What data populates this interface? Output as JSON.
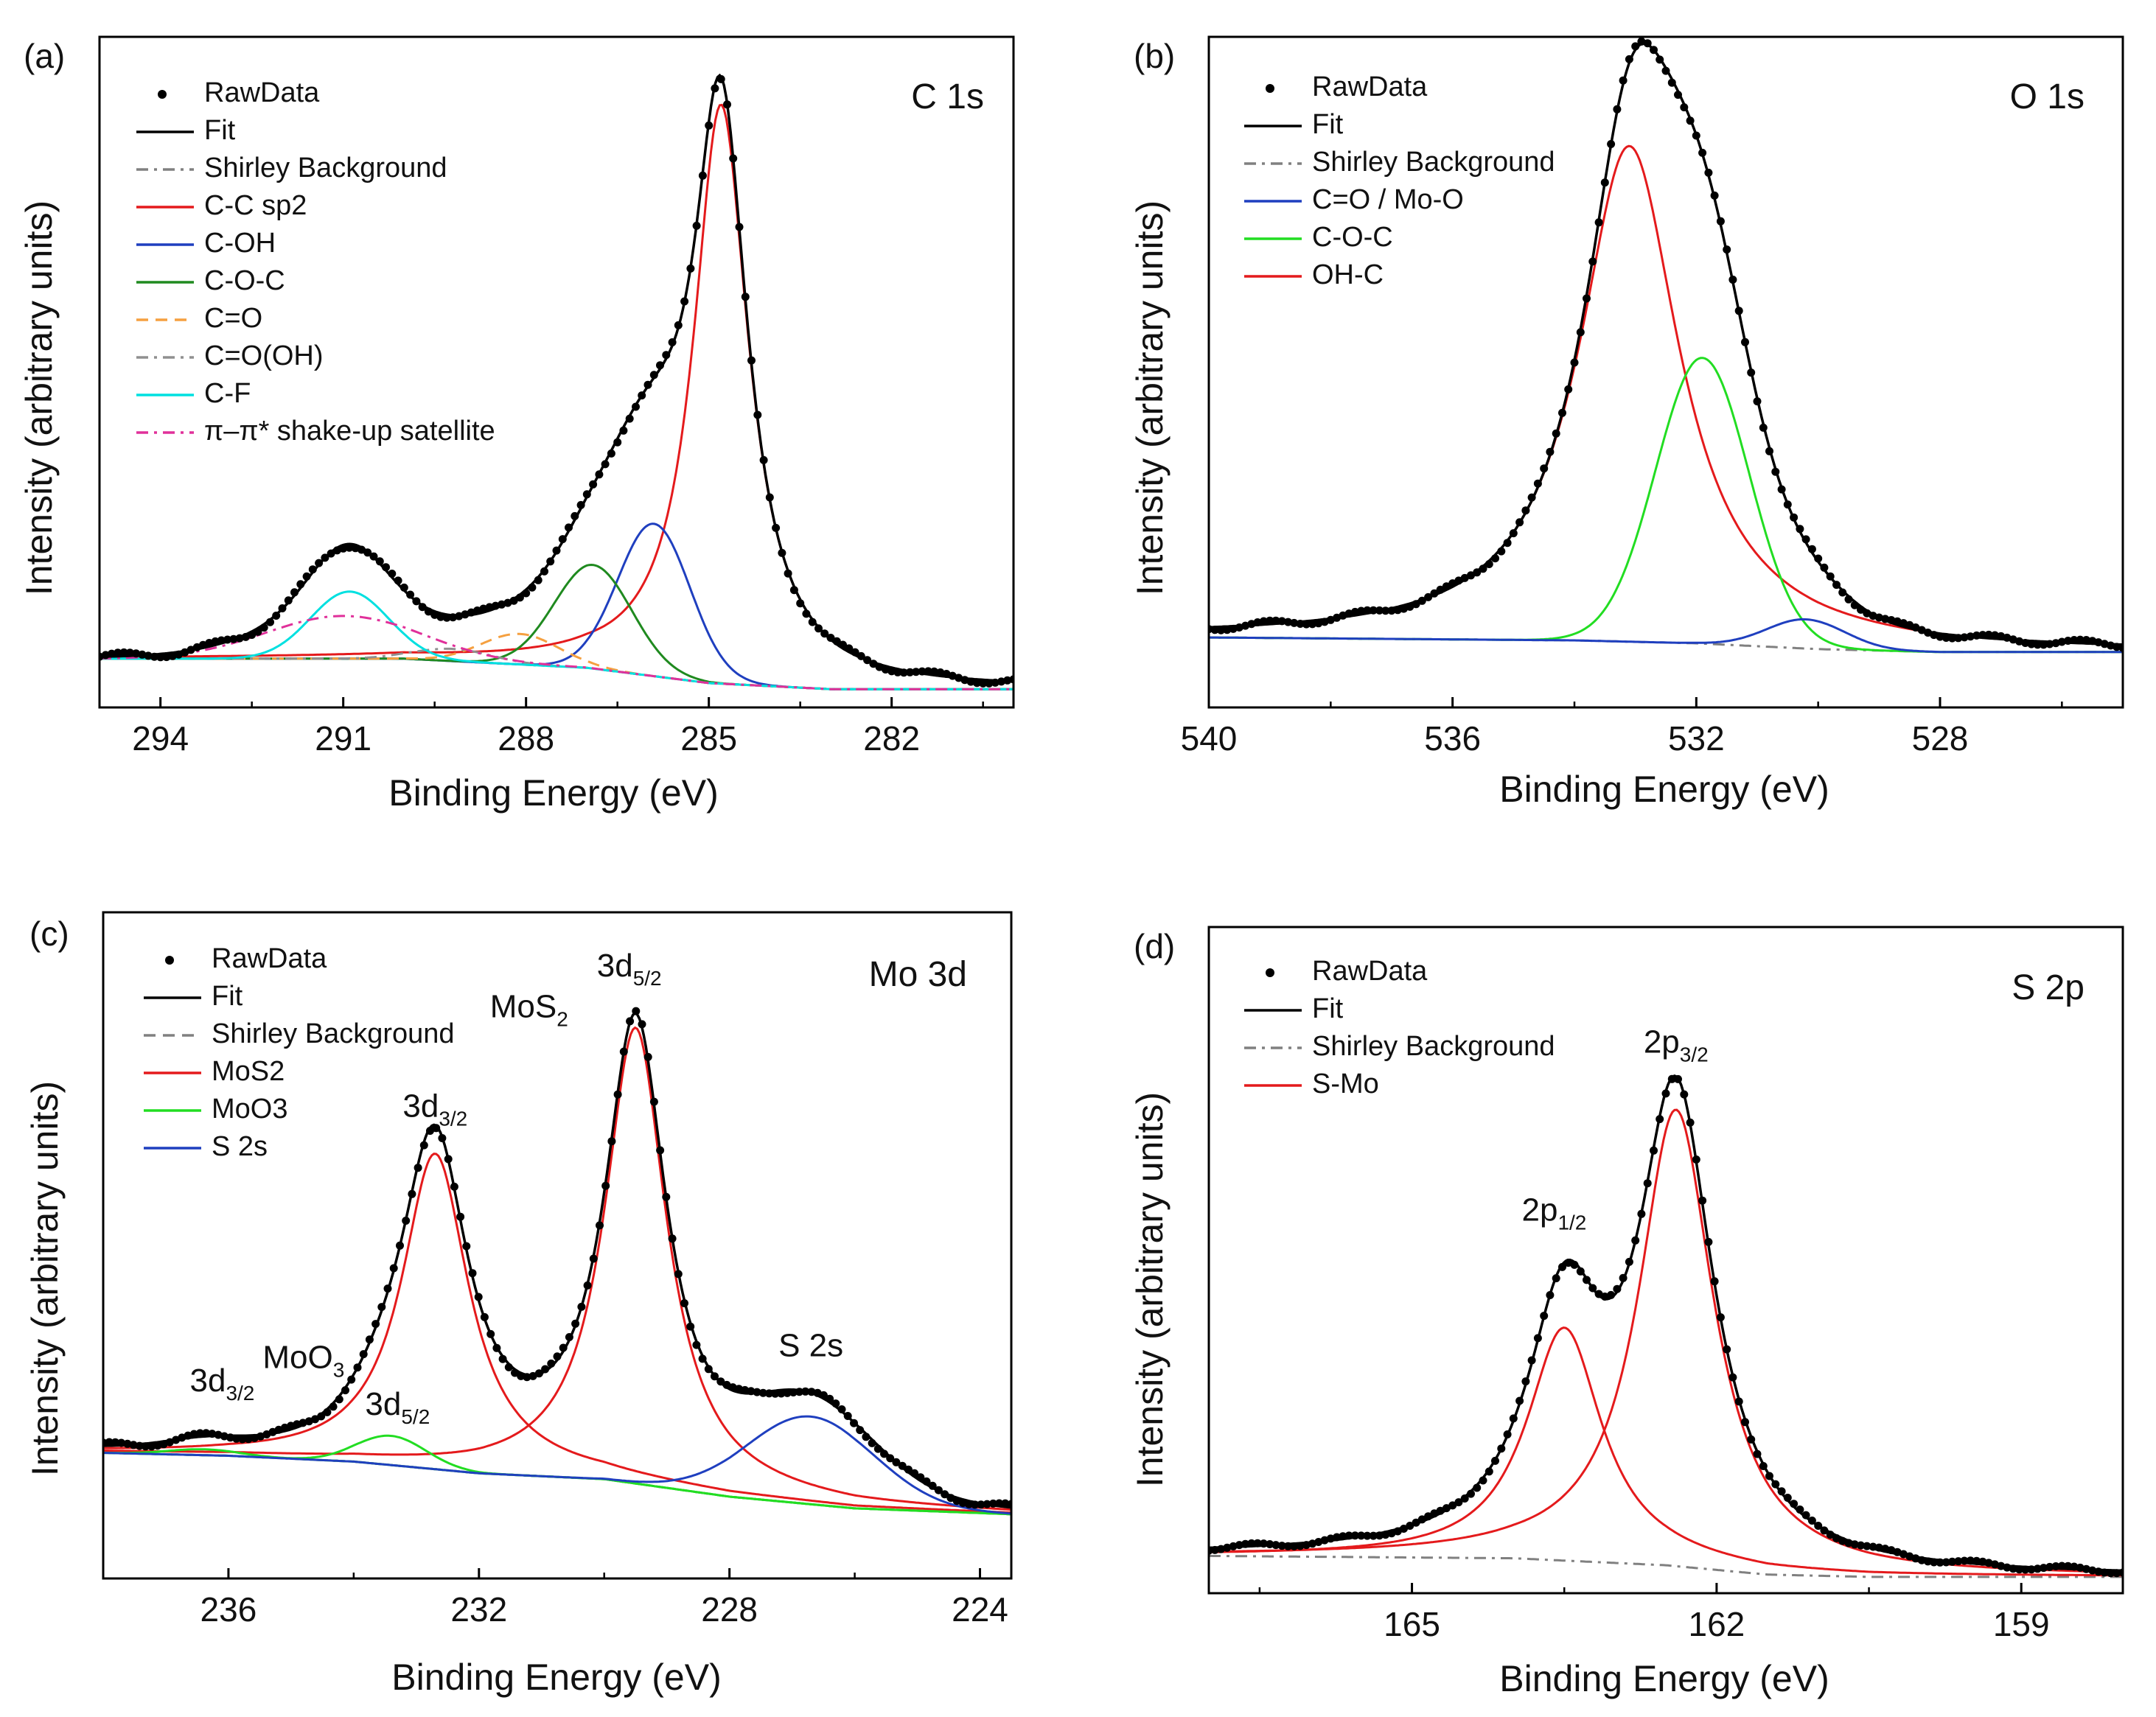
{
  "figure": {
    "x_axis_label": "Binding Energy (eV)",
    "y_axis_label": "Intensity (arbitrary units)"
  },
  "chart_data": [
    {
      "id": "a",
      "type": "line",
      "panel_label": "(a)",
      "title": "C 1s",
      "xlabel": "Binding Energy (eV)",
      "ylabel": "Intensity (arbitrary units)",
      "x_reversed": true,
      "xlim": [
        295,
        280
      ],
      "ylim": [
        -0.03,
        1.07
      ],
      "xticks": [
        294,
        291,
        288,
        285,
        282
      ],
      "background": {
        "name": "Shirley Background",
        "color": "#808080",
        "dash": "dashdot",
        "points": [
          [
            295,
            0.05
          ],
          [
            290,
            0.05
          ],
          [
            287,
            0.035
          ],
          [
            285,
            0.01
          ],
          [
            283,
            0.0
          ],
          [
            280,
            0.0
          ]
        ]
      },
      "components": [
        {
          "name": "C-C sp2",
          "color": "#e41a1c",
          "center": 284.8,
          "height": 0.95,
          "fwhm": 1.1,
          "shape": "lorentz"
        },
        {
          "name": "C-OH",
          "color": "#1f3fbf",
          "center": 285.9,
          "height": 0.25,
          "fwhm": 1.4,
          "shape": "gauss"
        },
        {
          "name": "C-O-C",
          "color": "#1f8a1f",
          "center": 286.9,
          "height": 0.17,
          "fwhm": 1.5,
          "shape": "gauss"
        },
        {
          "name": "C=O",
          "color": "#f5a040",
          "dash": "dash",
          "center": 288.1,
          "height": 0.05,
          "fwhm": 1.5,
          "shape": "gauss"
        },
        {
          "name": "C=O(OH)",
          "color": "#909090",
          "dash": "dashdot",
          "center": 289.2,
          "height": 0.02,
          "fwhm": 1.5,
          "shape": "gauss"
        },
        {
          "name": "C-F",
          "color": "#00e0e0",
          "center": 290.9,
          "height": 0.11,
          "fwhm": 1.5,
          "shape": "gauss"
        },
        {
          "name": "π–π* shake-up satellite",
          "color": "#e0309a",
          "dash": "dashdot",
          "center": 291.0,
          "height": 0.07,
          "fwhm": 3.0,
          "shape": "gauss"
        }
      ],
      "legend": [
        {
          "label": "RawData",
          "kind": "marker"
        },
        {
          "label": "Fit",
          "kind": "line",
          "color": "#000000"
        },
        {
          "label": "Shirley Background",
          "kind": "line",
          "color": "#808080",
          "dash": "dashdot"
        },
        {
          "label": "C-C sp2",
          "kind": "line",
          "color": "#e41a1c"
        },
        {
          "label": "C-OH",
          "kind": "line",
          "color": "#1f3fbf"
        },
        {
          "label": "C-O-C",
          "kind": "line",
          "color": "#1f8a1f"
        },
        {
          "label": "C=O",
          "kind": "line",
          "color": "#f5a040",
          "dash": "dash"
        },
        {
          "label": "C=O(OH)",
          "kind": "line",
          "color": "#909090",
          "dash": "dashdot"
        },
        {
          "label": "C-F",
          "kind": "line",
          "color": "#00e0e0"
        },
        {
          "label": "π–π* shake-up satellite",
          "kind": "line",
          "color": "#e0309a",
          "dash": "dashdot"
        }
      ],
      "annotations": []
    },
    {
      "id": "b",
      "type": "line",
      "panel_label": "(b)",
      "title": "O 1s",
      "xlabel": "Binding Energy (eV)",
      "ylabel": "Intensity (arbitrary units)",
      "x_reversed": true,
      "xlim": [
        540,
        525
      ],
      "ylim": [
        -0.12,
        1.03
      ],
      "xticks": [
        540,
        536,
        532,
        528
      ],
      "background": {
        "name": "Shirley Background",
        "color": "#808080",
        "dash": "dashdot",
        "points": [
          [
            540,
            0.0
          ],
          [
            534,
            -0.005
          ],
          [
            532,
            -0.01
          ],
          [
            530,
            -0.02
          ],
          [
            528,
            -0.025
          ],
          [
            525,
            -0.025
          ]
        ]
      },
      "components": [
        {
          "name": "OH-C",
          "color": "#e41a1c",
          "center": 533.1,
          "height": 0.85,
          "fwhm": 2.0,
          "shape": "lorentz"
        },
        {
          "name": "C-O-C",
          "color": "#22dd22",
          "center": 531.9,
          "height": 0.49,
          "fwhm": 1.8,
          "shape": "gauss"
        },
        {
          "name": "C=O / Mo-O",
          "color": "#1f3fbf",
          "center": 530.2,
          "height": 0.05,
          "fwhm": 1.5,
          "shape": "gauss"
        }
      ],
      "legend": [
        {
          "label": "RawData",
          "kind": "marker"
        },
        {
          "label": "Fit",
          "kind": "line",
          "color": "#000000"
        },
        {
          "label": "Shirley Background",
          "kind": "line",
          "color": "#808080",
          "dash": "dashdot"
        },
        {
          "label": "C=O / Mo-O",
          "kind": "line",
          "color": "#1f3fbf"
        },
        {
          "label": "C-O-C",
          "kind": "line",
          "color": "#22dd22"
        },
        {
          "label": "OH-C",
          "kind": "line",
          "color": "#e41a1c"
        }
      ],
      "annotations": []
    },
    {
      "id": "c",
      "type": "line",
      "panel_label": "(c)",
      "title": "Mo 3d",
      "xlabel": "Binding Energy (eV)",
      "ylabel": "Intensity (arbitrary units)",
      "x_reversed": true,
      "xlim": [
        238,
        223.5
      ],
      "ylim": [
        -0.12,
        1.02
      ],
      "xticks": [
        236,
        232,
        228,
        224
      ],
      "background": {
        "name": "Shirley Background",
        "color": "#808080",
        "dash": "dash",
        "points": [
          [
            238,
            0.095
          ],
          [
            236,
            0.09
          ],
          [
            234,
            0.08
          ],
          [
            232,
            0.06
          ],
          [
            230,
            0.05
          ],
          [
            229,
            0.035
          ],
          [
            228,
            0.02
          ],
          [
            226,
            0.0
          ],
          [
            223.5,
            -0.01
          ]
        ]
      },
      "components": [
        {
          "name": "MoS2",
          "color": "#e41a1c",
          "center": 232.7,
          "height": 0.54,
          "fwhm": 1.3,
          "shape": "lorentz"
        },
        {
          "name": "MoS2",
          "color": "#e41a1c",
          "center": 229.5,
          "height": 0.78,
          "fwhm": 1.2,
          "shape": "lorentz"
        },
        {
          "name": "MoO3",
          "color": "#22dd22",
          "center": 233.4,
          "height": 0.05,
          "fwhm": 1.3,
          "shape": "gauss"
        },
        {
          "name": "MoO3",
          "color": "#22dd22",
          "center": 236.4,
          "height": 0.01,
          "fwhm": 1.3,
          "shape": "gauss"
        },
        {
          "name": "S 2s",
          "color": "#1f3fbf",
          "center": 226.7,
          "height": 0.15,
          "fwhm": 2.4,
          "shape": "gauss"
        }
      ],
      "legend": [
        {
          "label": "RawData",
          "kind": "marker"
        },
        {
          "label": "Fit",
          "kind": "line",
          "color": "#000000"
        },
        {
          "label": "Shirley Background",
          "kind": "line",
          "color": "#808080",
          "dash": "dash"
        },
        {
          "label": "MoS2",
          "kind": "line",
          "color": "#e41a1c"
        },
        {
          "label": "MoO3",
          "kind": "line",
          "color": "#22dd22"
        },
        {
          "label": "S 2s",
          "kind": "line",
          "color": "#1f3fbf"
        }
      ],
      "annotations": [
        {
          "text": "3d",
          "sub": "5/2",
          "x": 229.6,
          "y": 0.91
        },
        {
          "text": "MoS",
          "sub": "2",
          "x": 231.2,
          "y": 0.84
        },
        {
          "text": "3d",
          "sub": "3/2",
          "x": 232.7,
          "y": 0.67
        },
        {
          "text": "MoO",
          "sub": "3",
          "x": 234.8,
          "y": 0.24
        },
        {
          "text": "3d",
          "sub": "3/2",
          "x": 236.1,
          "y": 0.2
        },
        {
          "text": "3d",
          "sub": "5/2",
          "x": 233.3,
          "y": 0.16
        },
        {
          "text": "S 2s",
          "sub": "",
          "x": 226.7,
          "y": 0.26
        }
      ]
    },
    {
      "id": "d",
      "type": "line",
      "panel_label": "(d)",
      "title": "S 2p",
      "xlabel": "Binding Energy (eV)",
      "ylabel": "Intensity (arbitrary units)",
      "x_reversed": true,
      "xlim": [
        167,
        158
      ],
      "ylim": [
        -0.08,
        1.35
      ],
      "xticks": [
        165,
        162,
        159
      ],
      "background": {
        "name": "Shirley Background",
        "color": "#808080",
        "dash": "dashdot",
        "points": [
          [
            167,
            0.0
          ],
          [
            164,
            -0.005
          ],
          [
            162.5,
            -0.02
          ],
          [
            161.5,
            -0.04
          ],
          [
            160.5,
            -0.045
          ],
          [
            158,
            -0.045
          ]
        ]
      },
      "components": [
        {
          "name": "S-Mo",
          "color": "#e41a1c",
          "center": 162.4,
          "height": 0.98,
          "fwhm": 0.9,
          "shape": "lorentz"
        },
        {
          "name": "S-Mo",
          "color": "#e41a1c",
          "center": 163.5,
          "height": 0.5,
          "fwhm": 0.9,
          "shape": "lorentz"
        }
      ],
      "legend": [
        {
          "label": "RawData",
          "kind": "marker"
        },
        {
          "label": "Fit",
          "kind": "line",
          "color": "#000000"
        },
        {
          "label": "Shirley Background",
          "kind": "line",
          "color": "#808080",
          "dash": "dashdot"
        },
        {
          "label": "S-Mo",
          "kind": "line",
          "color": "#e41a1c"
        }
      ],
      "annotations": [
        {
          "text": "2p",
          "sub": "3/2",
          "x": 162.4,
          "y": 1.08
        },
        {
          "text": "2p",
          "sub": "1/2",
          "x": 163.6,
          "y": 0.72
        }
      ]
    }
  ]
}
